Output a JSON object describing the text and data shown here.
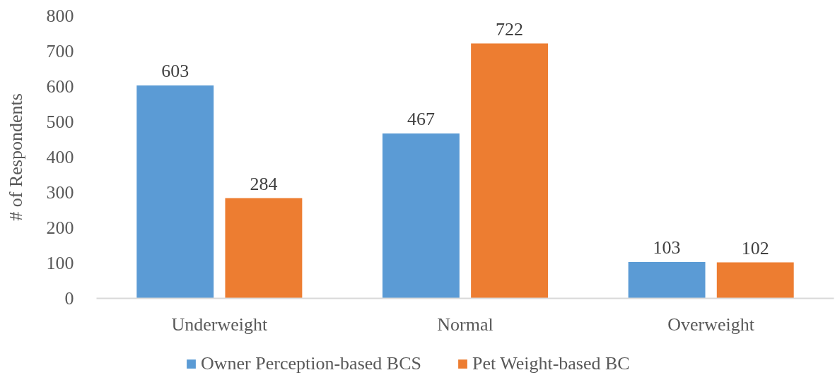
{
  "chart_data": {
    "type": "bar",
    "ylabel": "# of Respondents",
    "categories": [
      "Underweight",
      "Normal",
      "Overweight"
    ],
    "series": [
      {
        "name": "Owner Perception-based BCS",
        "color": "#5b9bd5",
        "values": [
          603,
          467,
          103
        ]
      },
      {
        "name": "Pet Weight-based BC",
        "color": "#ed7d31",
        "values": [
          284,
          722,
          102
        ]
      }
    ],
    "ylim": [
      0,
      800
    ],
    "yticks": [
      0,
      100,
      200,
      300,
      400,
      500,
      600,
      700,
      800
    ],
    "data_labels": true,
    "grid": false,
    "legend": "bottom"
  }
}
